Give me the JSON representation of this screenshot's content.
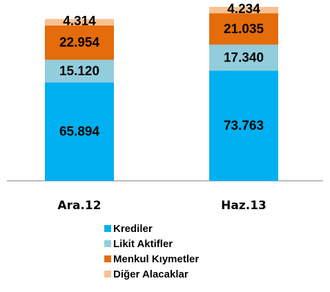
{
  "chart_data": {
    "type": "stacked_bar",
    "categories": [
      "Ara.12",
      "Haz.13"
    ],
    "series": [
      {
        "name": "Krediler",
        "color": "#00b0f0",
        "values": [
          65.894,
          73.763
        ],
        "value_labels": [
          "65.894",
          "73.763"
        ]
      },
      {
        "name": "Likit Aktifler",
        "color": "#92cddc",
        "values": [
          15.12,
          17.34
        ],
        "value_labels": [
          "15.120",
          "17.340"
        ]
      },
      {
        "name": "Menkul Kıymetler",
        "color": "#e46c0a",
        "values": [
          22.954,
          21.035
        ],
        "value_labels": [
          "22.954",
          "21.035"
        ]
      },
      {
        "name": "Diğer Alacaklar",
        "color": "#fac090",
        "values": [
          4.314,
          4.234
        ],
        "value_labels": [
          "4.314",
          "4.234"
        ]
      }
    ]
  }
}
